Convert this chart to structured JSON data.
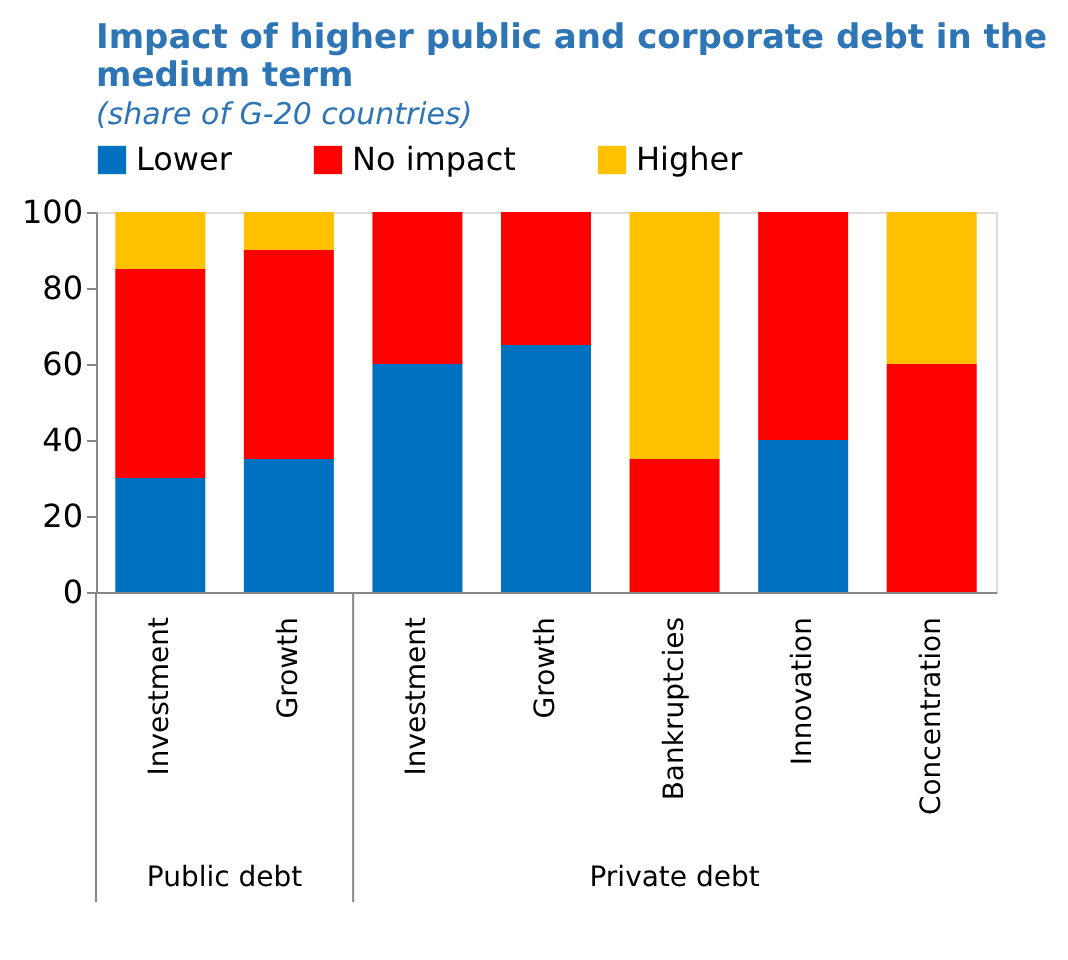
{
  "chart_data": {
    "type": "bar",
    "title": "Impact of higher public and corporate debt in the medium term",
    "subtitle": "(share of G-20 countries)",
    "categories": [
      "Investment",
      "Growth",
      "Investment",
      "Growth",
      "Bankruptcies",
      "Innovation",
      "Concentration"
    ],
    "series": [
      {
        "name": "Lower",
        "color": "#0070c0",
        "values": [
          30,
          35,
          60,
          65,
          0,
          40,
          0
        ]
      },
      {
        "name": "No impact",
        "color": "#ff0000",
        "values": [
          55,
          55,
          40,
          35,
          35,
          60,
          60
        ]
      },
      {
        "name": "Higher",
        "color": "#ffc000",
        "values": [
          15,
          10,
          0,
          0,
          65,
          0,
          40
        ]
      }
    ],
    "stacked": true,
    "ylim": [
      0,
      100
    ],
    "yticks": [
      0,
      20,
      40,
      60,
      80,
      100
    ],
    "grid": false,
    "legend": "top",
    "annotations": [
      "Public debt",
      "Private debt"
    ]
  }
}
